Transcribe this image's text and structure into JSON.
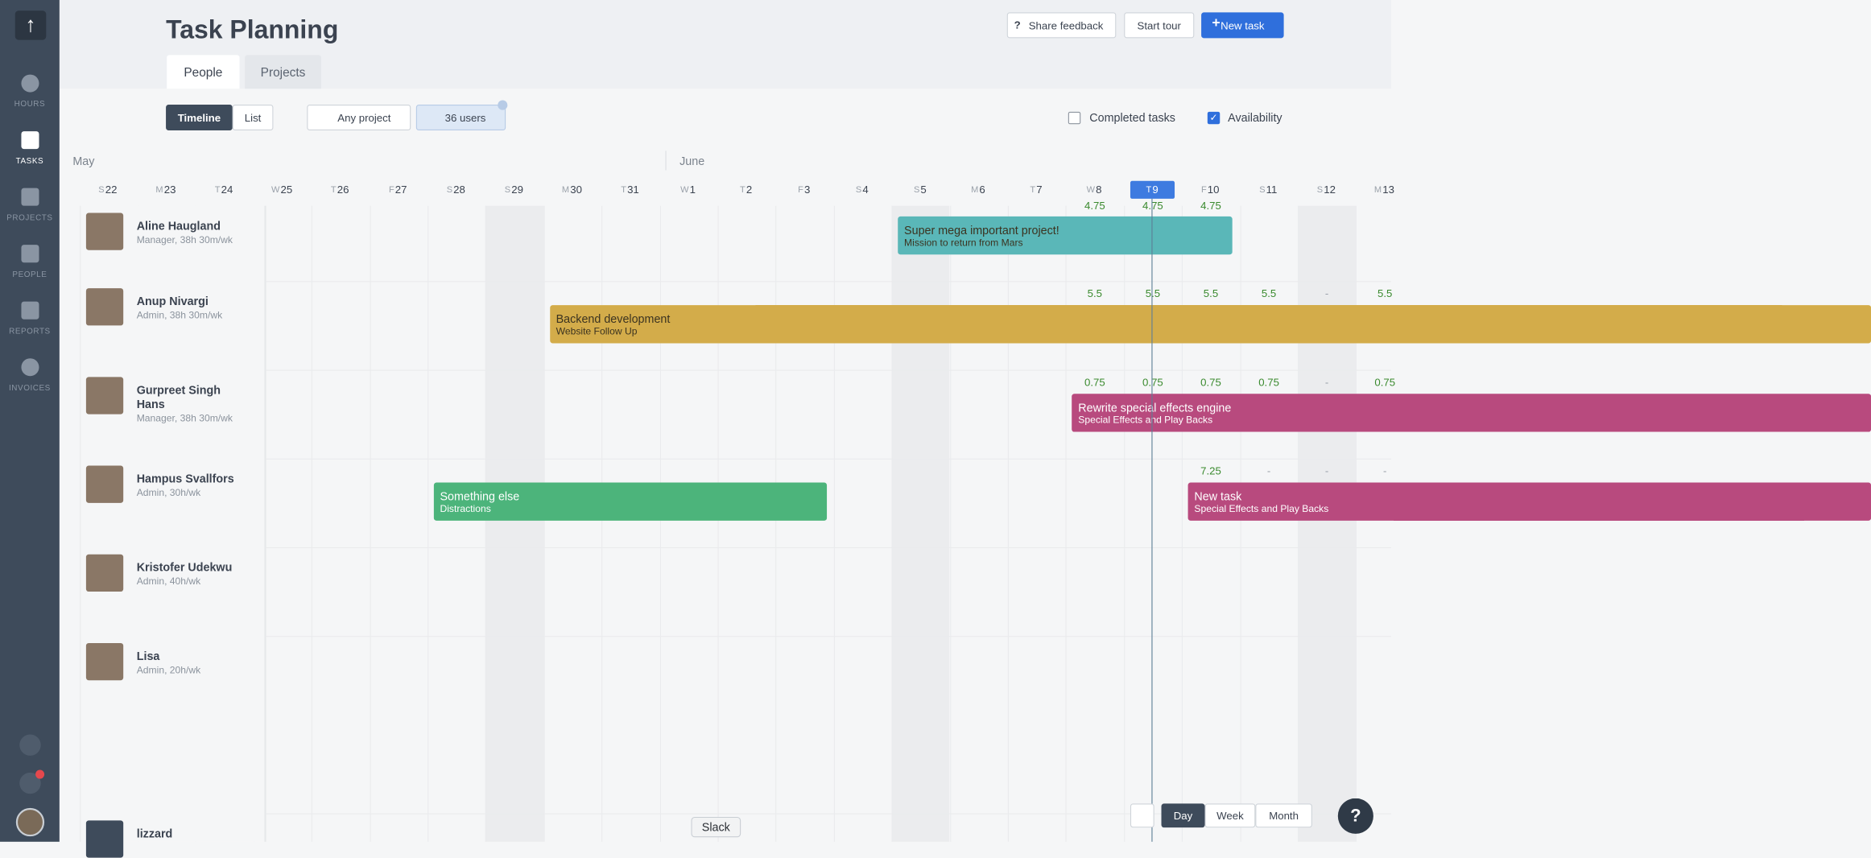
{
  "sidebar": {
    "items": [
      "HOURS",
      "TASKS",
      "PROJECTS",
      "PEOPLE",
      "REPORTS",
      "INVOICES"
    ],
    "active": "TASKS"
  },
  "header": {
    "title": "Task Planning",
    "tabs": [
      "People",
      "Projects"
    ],
    "buttons": [
      "Share feedback",
      "Start tour",
      "New task"
    ]
  },
  "toolbar": {
    "views": [
      "Timeline",
      "List"
    ],
    "project_filter": "Any project",
    "user_filter": "36 users",
    "checkboxes": [
      {
        "label": "Completed tasks",
        "checked": false
      },
      {
        "label": "Availability",
        "checked": true
      }
    ]
  },
  "timeline": {
    "months": [
      "May",
      "June"
    ],
    "today": "T9",
    "days": [
      {
        "weekday": "S",
        "date": 22
      },
      {
        "weekday": "M",
        "date": 23
      },
      {
        "weekday": "T",
        "date": 24
      },
      {
        "weekday": "W",
        "date": 25
      },
      {
        "weekday": "T",
        "date": 26
      },
      {
        "weekday": "F",
        "date": 27
      },
      {
        "weekday": "S",
        "date": 28
      },
      {
        "weekday": "S",
        "date": 29
      },
      {
        "weekday": "M",
        "date": 30
      },
      {
        "weekday": "T",
        "date": 31
      },
      {
        "weekday": "W",
        "date": 1
      },
      {
        "weekday": "T",
        "date": 2
      },
      {
        "weekday": "F",
        "date": 3
      },
      {
        "weekday": "S",
        "date": 4
      },
      {
        "weekday": "S",
        "date": 5
      },
      {
        "weekday": "M",
        "date": 6
      },
      {
        "weekday": "T",
        "date": 7
      },
      {
        "weekday": "W",
        "date": 8
      },
      {
        "weekday": "T",
        "date": 9
      },
      {
        "weekday": "F",
        "date": 10
      },
      {
        "weekday": "S",
        "date": 11
      },
      {
        "weekday": "S",
        "date": 12
      },
      {
        "weekday": "M",
        "date": 13
      }
    ]
  },
  "people": [
    {
      "name": "Aline Haugland",
      "role": "Manager, 38h 30m/wk",
      "availability": [
        null,
        null,
        null,
        null,
        null,
        null,
        null,
        null,
        null,
        null,
        null,
        null,
        null,
        null,
        null,
        null,
        null,
        4.75,
        4.75,
        4.75,
        null,
        null,
        null
      ],
      "tasks": [
        {
          "title": "Super mega important project!",
          "subtitle": "Mission to return from Mars",
          "color": "#5ab7b8"
        }
      ]
    },
    {
      "name": "Anup Nivargi",
      "role": "Admin, 38h 30m/wk",
      "availability": [
        null,
        null,
        null,
        null,
        null,
        null,
        null,
        null,
        null,
        null,
        null,
        null,
        null,
        null,
        null,
        null,
        null,
        5.5,
        5.5,
        5.5,
        5.5,
        "-",
        5.5
      ],
      "tasks": [
        {
          "title": "Backend development",
          "subtitle": "Website Follow Up",
          "color": "#d3ac4a"
        }
      ]
    },
    {
      "name": "Gurpreet Singh Hans",
      "role": "Manager, 38h 30m/wk",
      "availability": [
        null,
        null,
        null,
        null,
        null,
        null,
        null,
        null,
        null,
        null,
        null,
        null,
        null,
        null,
        null,
        null,
        null,
        0.75,
        0.75,
        0.75,
        0.75,
        "-",
        0.75
      ],
      "tasks": [
        {
          "title": "Rewrite special effects engine",
          "subtitle": "Special Effects and Play Backs",
          "color": "#b84a7e"
        }
      ]
    },
    {
      "name": "Hampus Svallfors",
      "role": "Admin, 30h/wk",
      "availability": [
        null,
        null,
        null,
        null,
        null,
        null,
        null,
        null,
        null,
        null,
        null,
        null,
        null,
        null,
        null,
        null,
        null,
        null,
        null,
        7.25,
        "-",
        "-",
        "-"
      ],
      "tasks": [
        {
          "title": "Something else",
          "subtitle": "Distractions",
          "color": "#4cb47b"
        },
        {
          "title": "New task",
          "subtitle": "Special Effects and Play Backs",
          "color": "#b84a7e"
        }
      ]
    },
    {
      "name": "Kristofer Udekwu",
      "role": "Admin, 40h/wk",
      "availability": [],
      "tasks": []
    },
    {
      "name": "Lisa",
      "role": "Admin, 20h/wk",
      "availability": [],
      "tasks": []
    },
    {
      "name": "lizzard",
      "role": null,
      "availability": [],
      "tasks": []
    }
  ],
  "zoom": {
    "options": [
      "Day",
      "Week",
      "Month"
    ],
    "active": "Day"
  },
  "tooltip": "Slack",
  "help": "?"
}
